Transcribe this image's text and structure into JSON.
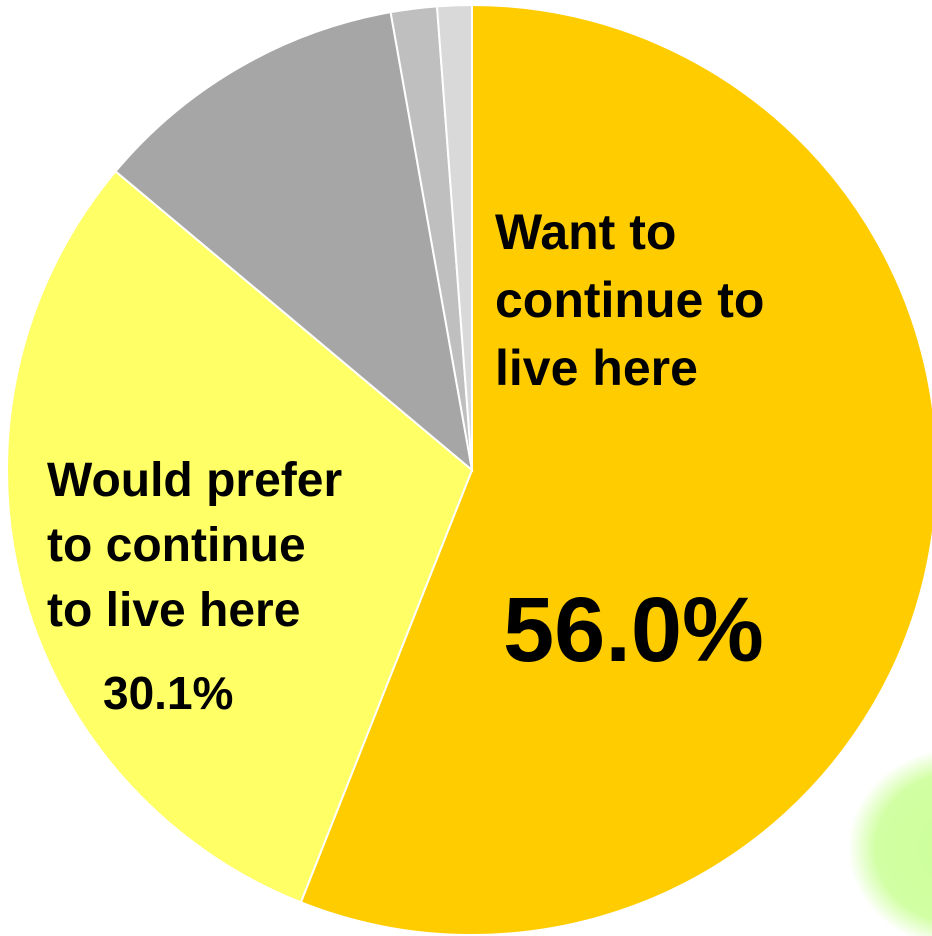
{
  "chart_data": {
    "type": "pie",
    "slices": [
      {
        "label_lines": [
          "Want to",
          "continue to",
          "live here"
        ],
        "value": 56.0,
        "value_label": "56.0%",
        "color": "#FFCC00"
      },
      {
        "label_lines": [
          "Would prefer",
          "to continue",
          "to live here"
        ],
        "value": 30.1,
        "value_label": "30.1%",
        "color": "#FFFF66"
      },
      {
        "label_lines": [],
        "value": 11.1,
        "value_label": "",
        "color": "#A6A6A6"
      },
      {
        "label_lines": [],
        "value": 1.6,
        "value_label": "",
        "color": "#BFBFBF"
      },
      {
        "label_lines": [],
        "value": 1.2,
        "value_label": "",
        "color": "#D9D9D9"
      }
    ],
    "start": "12 o'clock",
    "direction": "clockwise"
  },
  "decoration": {
    "color": "#CCFF99"
  }
}
